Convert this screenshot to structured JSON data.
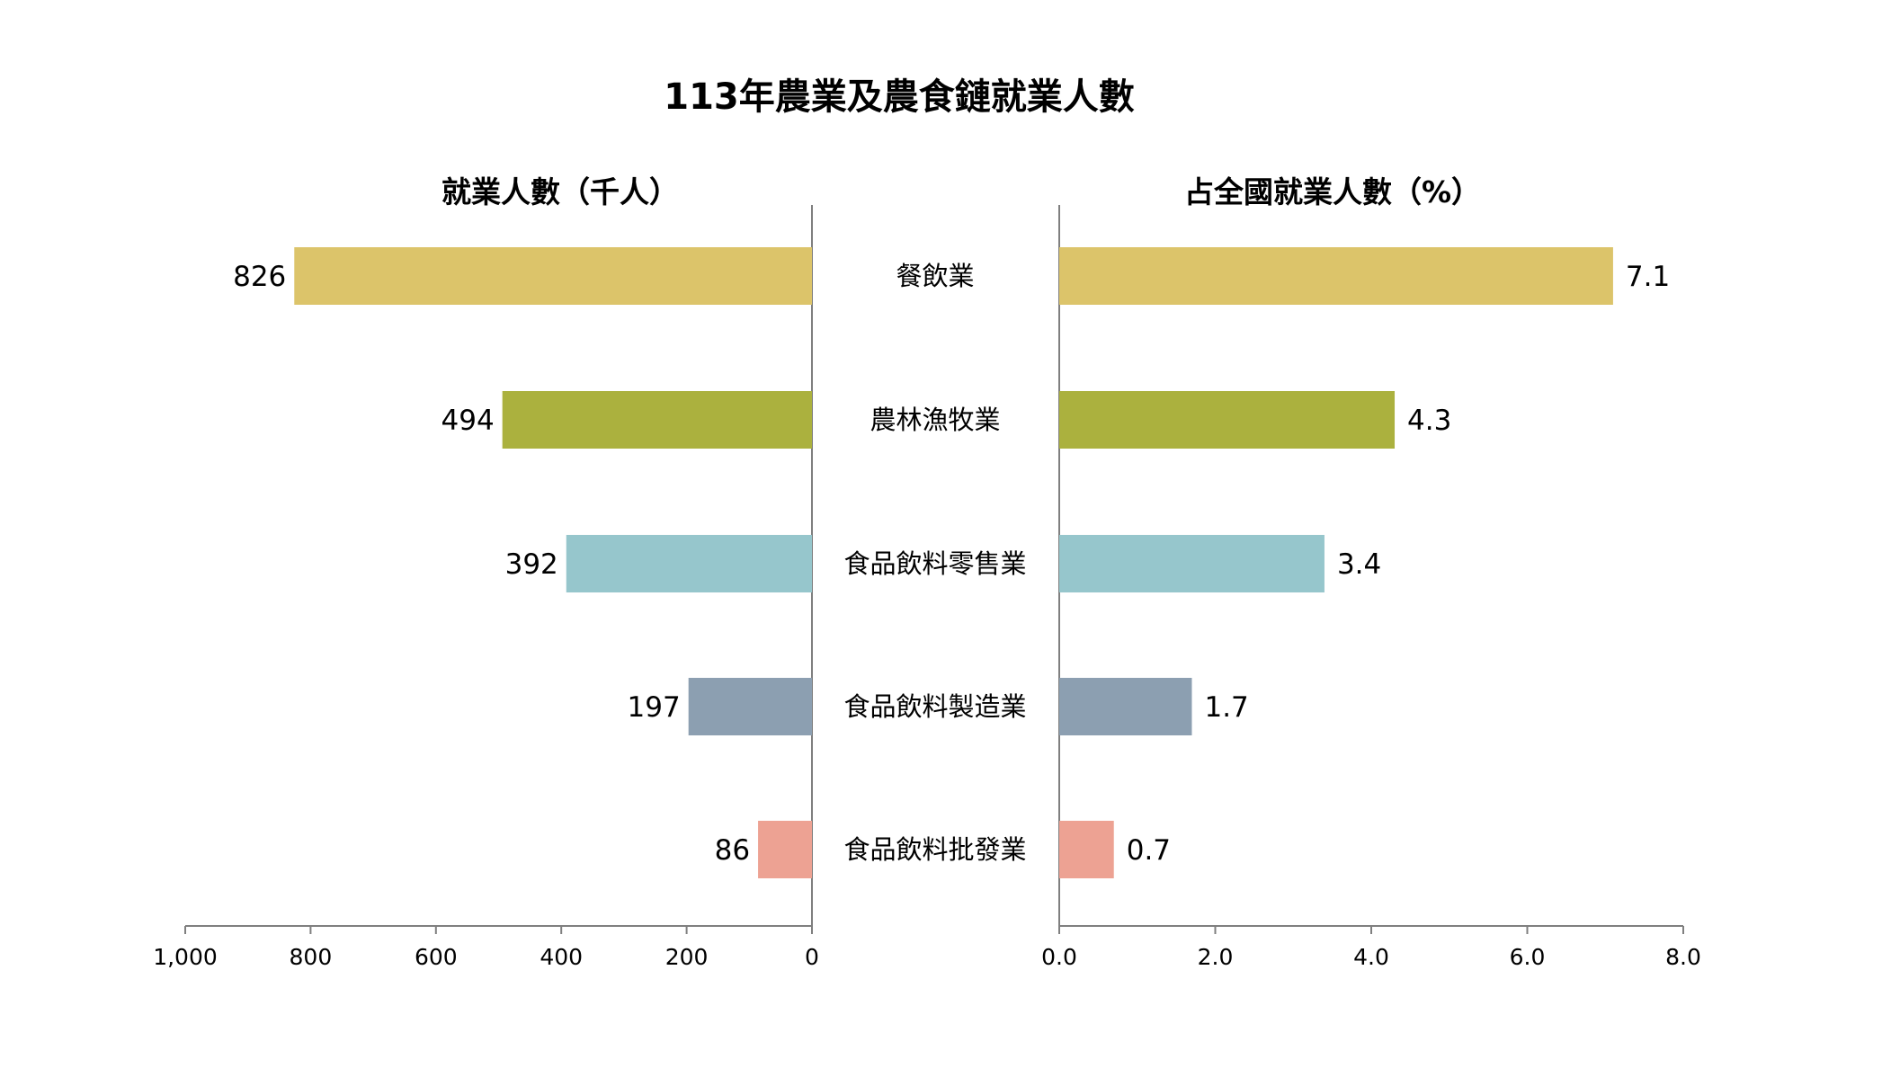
{
  "chart_data": {
    "type": "bar",
    "title": "113年農業及農食鏈就業人數",
    "categories": [
      "餐飲業",
      "農林漁牧業",
      "食品飲料零售業",
      "食品飲料製造業",
      "食品飲料批發業"
    ],
    "colors": [
      "#dcc46a",
      "#abb13e",
      "#96c6cc",
      "#8c9fb1",
      "#eda293"
    ],
    "series": [
      {
        "name": "就業人數（千人）",
        "values": [
          826,
          494,
          392,
          197,
          86
        ],
        "value_labels": [
          "826",
          "494",
          "392",
          "197",
          "86"
        ],
        "xlim": [
          0,
          1000
        ],
        "direction": "reversed",
        "ticks": [
          1000,
          800,
          600,
          400,
          200,
          0
        ],
        "tick_labels": [
          "1,000",
          "800",
          "600",
          "400",
          "200",
          "0"
        ]
      },
      {
        "name": "占全國就業人數（%）",
        "values": [
          7.1,
          4.3,
          3.4,
          1.7,
          0.7
        ],
        "value_labels": [
          "7.1",
          "4.3",
          "3.4",
          "1.7",
          "0.7"
        ],
        "xlim": [
          0,
          8
        ],
        "direction": "normal",
        "ticks": [
          0,
          2,
          4,
          6,
          8
        ],
        "tick_labels": [
          "0.0",
          "2.0",
          "4.0",
          "6.0",
          "8.0"
        ]
      }
    ],
    "grid": false,
    "legend": "none"
  }
}
